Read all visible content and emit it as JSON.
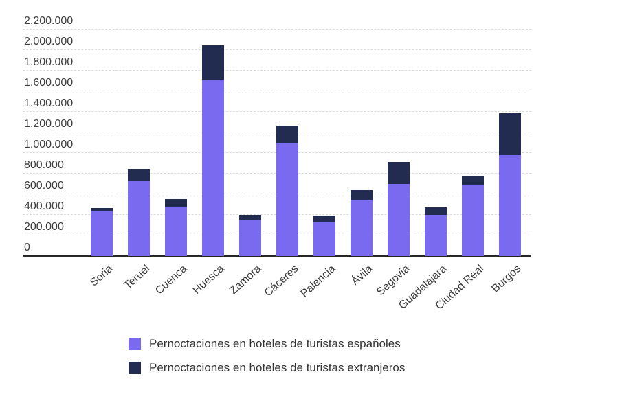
{
  "chart_data": {
    "type": "bar",
    "stacked": true,
    "orientation": "vertical",
    "title": "",
    "xlabel": "",
    "ylabel": "",
    "categories": [
      "Soria",
      "Teruel",
      "Cuenca",
      "Huesca",
      "Zamora",
      "Cáceres",
      "Palencia",
      "Ávila",
      "Segovia",
      "Guadalajara",
      "Ciudad Real",
      "Burgos"
    ],
    "series": [
      {
        "name": "Pernoctaciones en hoteles de turistas españoles",
        "color": "#7a6af0",
        "values": [
          433000,
          730000,
          473000,
          1715000,
          352000,
          1092000,
          324000,
          543000,
          697000,
          398000,
          688000,
          980000
        ]
      },
      {
        "name": "Pernoctaciones en hoteles de turistas extranjeros",
        "color": "#222c50",
        "values": [
          34000,
          118000,
          80000,
          330000,
          48000,
          175000,
          68000,
          100000,
          214000,
          75000,
          92000,
          410000
        ]
      }
    ],
    "ylim": [
      0,
      2200000
    ],
    "ytick_values": [
      0,
      200000,
      400000,
      600000,
      800000,
      1000000,
      1200000,
      1400000,
      1600000,
      1800000,
      2000000,
      2200000
    ],
    "ytick_labels": [
      "0",
      "200.000",
      "400.000",
      "600.000",
      "800.000",
      "1.000.000",
      "1.200.000",
      "1.400.000",
      "1.600.000",
      "1.800.000",
      "2.000.000",
      "2.200.000"
    ],
    "grid": true,
    "gridline_color": "#dcdcdc",
    "axis_line_color": "#262626",
    "tick_text_color": "#3d3d3d",
    "legend_position": "bottom-left",
    "legend_text_color": "#333333"
  }
}
